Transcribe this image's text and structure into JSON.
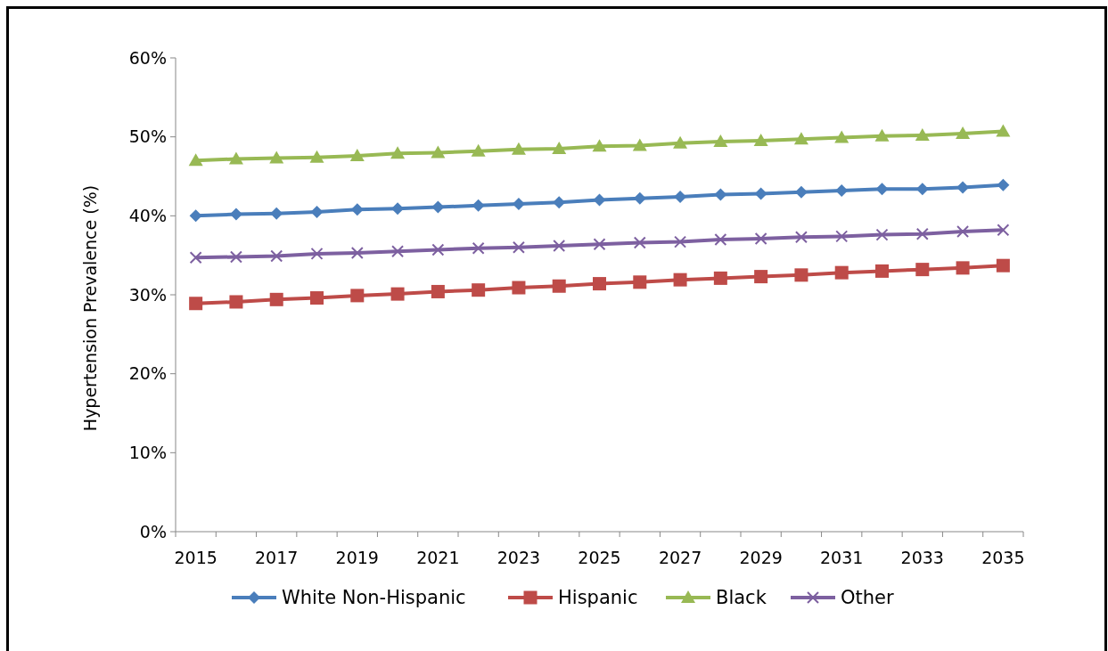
{
  "chart_data": {
    "type": "line",
    "ylabel": "Hypertension Prevalence (%)",
    "categories": [
      "2015",
      null,
      "2017",
      null,
      "2019",
      null,
      "2021",
      null,
      "2023",
      null,
      "2025",
      null,
      "2027",
      null,
      "2029",
      null,
      "2031",
      null,
      "2033",
      null,
      "2035"
    ],
    "ylim": [
      0,
      60
    ],
    "yticks": [
      {
        "value": 0,
        "label": "0%"
      },
      {
        "value": 10,
        "label": "10%"
      },
      {
        "value": 20,
        "label": "20%"
      },
      {
        "value": 30,
        "label": "30%"
      },
      {
        "value": 40,
        "label": "40%"
      },
      {
        "value": 50,
        "label": "50%"
      },
      {
        "value": 60,
        "label": "60%"
      }
    ],
    "grid": false,
    "legend": "bottom",
    "series": [
      {
        "name": "White Non-Hispanic",
        "color": "#4a7ebb",
        "marker": "diamond",
        "values": [
          40.0,
          40.2,
          40.3,
          40.5,
          40.8,
          40.9,
          41.1,
          41.3,
          41.5,
          41.7,
          42.0,
          42.2,
          42.4,
          42.7,
          42.8,
          43.0,
          43.2,
          43.4,
          43.4,
          43.6,
          43.9
        ]
      },
      {
        "name": "Hispanic",
        "color": "#be4b48",
        "marker": "square",
        "values": [
          28.9,
          29.1,
          29.4,
          29.6,
          29.9,
          30.1,
          30.4,
          30.6,
          30.9,
          31.1,
          31.4,
          31.6,
          31.9,
          32.1,
          32.3,
          32.5,
          32.8,
          33.0,
          33.2,
          33.4,
          33.7
        ]
      },
      {
        "name": "Black",
        "color": "#98b954",
        "marker": "triangle",
        "values": [
          47.0,
          47.2,
          47.3,
          47.4,
          47.6,
          47.9,
          48.0,
          48.2,
          48.4,
          48.5,
          48.8,
          48.9,
          49.2,
          49.4,
          49.5,
          49.7,
          49.9,
          50.1,
          50.2,
          50.4,
          50.7
        ]
      },
      {
        "name": "Other",
        "color": "#7d60a0",
        "marker": "cross",
        "values": [
          34.7,
          34.8,
          34.9,
          35.2,
          35.3,
          35.5,
          35.7,
          35.9,
          36.0,
          36.2,
          36.4,
          36.6,
          36.7,
          37.0,
          37.1,
          37.3,
          37.4,
          37.6,
          37.7,
          38.0,
          38.2
        ]
      }
    ]
  }
}
